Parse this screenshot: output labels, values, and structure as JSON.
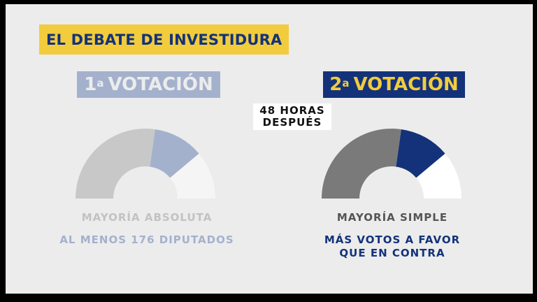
{
  "header": {
    "title": "EL DEBATE DE INVESTIDURA"
  },
  "vote1": {
    "number": "1",
    "sup": "a",
    "label": "VOTACIÓN",
    "majority": "MAYORÍA ABSOLUTA",
    "requirement": "AL MENOS 176 DIPUTADOS",
    "colors": {
      "left": "#c8c8c8",
      "middle": "#a4b1cd",
      "right": "#f5f5f5"
    }
  },
  "vote2": {
    "number": "2",
    "sup": "a",
    "label": "VOTACIÓN",
    "majority": "MAYORÍA SIMPLE",
    "requirement_line1": "MÁS VOTOS A FAVOR",
    "requirement_line2": "QUE EN CONTRA",
    "colors": {
      "left": "#7a7a7a",
      "middle": "#13327a",
      "right": "#ffffff"
    }
  },
  "interval": {
    "line1": "48 HORAS",
    "line2": "DESPUÉS"
  },
  "colors": {
    "accent_yellow": "#f2cc3c",
    "accent_navy": "#13327a",
    "background": "#ececec"
  }
}
